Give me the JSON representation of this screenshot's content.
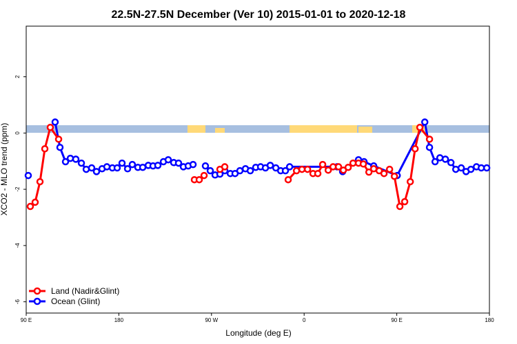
{
  "chart_data": {
    "type": "line",
    "title": "22.5N-27.5N December (Ver 10)   2015-01-01 to 2020-12-18",
    "x_label": "Longitude (deg E)",
    "y_label": "XCO2 - MLO trend (ppm)",
    "xlim": [
      90,
      540
    ],
    "ylim": [
      -6.4,
      3.8
    ],
    "xticks": [
      {
        "value": 90,
        "label": "90 E"
      },
      180,
      {
        "value": 270,
        "label": "90 W"
      },
      {
        "value": 360,
        "label": "0"
      },
      {
        "value": 450,
        "label": "90 E"
      },
      {
        "value": 540,
        "label": "180"
      }
    ],
    "yticks": [
      -6,
      -4,
      -2,
      0,
      2
    ],
    "legend": "bottom-left",
    "series": [
      {
        "name": "Ocean (Glint)",
        "color": "#0000ff",
        "x": [
          92.0,
          100,
          118.1,
          122.8,
          128.2,
          132.9,
          138.2,
          143.6,
          148.3,
          153.6,
          158.3,
          163.7,
          168.4,
          173.7,
          178.4,
          183.1,
          188.5,
          193.1,
          198.5,
          203.2,
          208.6,
          213.2,
          217.9,
          223.3,
          228.0,
          233.3,
          238.0,
          242.7,
          247.4,
          252.1,
          260,
          264.1,
          268.8,
          273.5,
          278.2,
          282.9,
          288.3,
          292.9,
          297.6,
          303.0,
          307.7,
          313.0,
          317.7,
          322.4,
          327.1,
          332.5,
          337.2,
          341.8,
          345.9,
          392.1,
          397.4,
          412.8,
          418.2,
          427.6,
          450.4,
          477.2,
          481.8,
          487.2,
          491.9,
          497.2,
          502.6,
          507.3,
          512.6,
          517.3,
          522.0,
          527.4,
          532.1,
          537.4
        ],
        "values": [
          -1.51,
          null,
          0.39,
          -0.51,
          -1.02,
          -0.9,
          -0.93,
          -1.07,
          -1.29,
          -1.24,
          -1.37,
          -1.27,
          -1.2,
          -1.24,
          -1.24,
          -1.07,
          -1.27,
          -1.12,
          -1.22,
          -1.22,
          -1.15,
          -1.17,
          -1.15,
          -1.02,
          -0.95,
          -1.05,
          -1.07,
          -1.2,
          -1.17,
          -1.12,
          null,
          -1.17,
          -1.34,
          -1.49,
          -1.46,
          -1.34,
          -1.44,
          -1.44,
          -1.34,
          -1.27,
          -1.34,
          -1.22,
          -1.2,
          -1.24,
          -1.15,
          -1.24,
          -1.34,
          -1.34,
          -1.2,
          -1.2,
          -1.37,
          -0.95,
          -1.02,
          -1.17,
          -1.51,
          0.39,
          -0.51,
          -1.02,
          -0.88,
          -0.93,
          -1.05,
          -1.29,
          -1.24,
          -1.37,
          -1.29,
          -1.2,
          -1.24,
          -1.24
        ]
      },
      {
        "name": "Land (Nadir&Glint)",
        "color": "#ff0000",
        "x": [
          94.0,
          98.7,
          103.4,
          108.1,
          113.4,
          121.5,
          180,
          253.4,
          258.1,
          262.8,
          270,
          278.2,
          282.9,
          300,
          344.5,
          352.6,
          357.9,
          363.3,
          368.6,
          373.3,
          378.0,
          383.4,
          388.1,
          393.4,
          398.1,
          402.8,
          407.5,
          412.8,
          417.5,
          422.9,
          427.6,
          432.9,
          437.6,
          443.0,
          447.7,
          453.0,
          457.7,
          463.1,
          467.8,
          472.4,
          481.8
        ],
        "values": [
          -2.61,
          -2.46,
          -1.73,
          -0.56,
          0.2,
          -0.22,
          null,
          -1.66,
          -1.66,
          -1.51,
          null,
          -1.29,
          -1.2,
          null,
          -1.66,
          -1.34,
          -1.29,
          -1.29,
          -1.44,
          -1.44,
          -1.12,
          -1.32,
          -1.2,
          -1.2,
          -1.32,
          -1.22,
          -1.07,
          -1.07,
          -1.1,
          -1.39,
          -1.27,
          -1.34,
          -1.44,
          -1.29,
          -1.54,
          -2.61,
          -2.44,
          -1.73,
          -0.56,
          0.2,
          -0.22
        ]
      }
    ]
  }
}
